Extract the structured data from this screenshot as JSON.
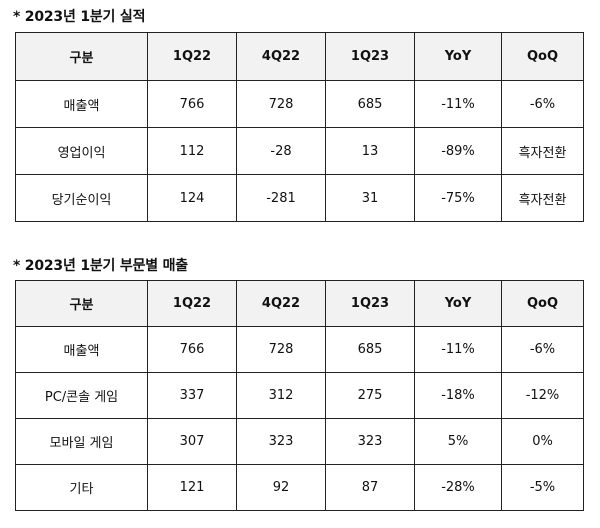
{
  "section1": {
    "title": "* 2023년 1분기 실적",
    "headers": [
      "구분",
      "1Q22",
      "4Q22",
      "1Q23",
      "YoY",
      "QoQ"
    ],
    "rows": [
      [
        "매출액",
        "766",
        "728",
        "685",
        "-11%",
        "-6%"
      ],
      [
        "영업이익",
        "112",
        "-28",
        "13",
        "-89%",
        "흑자전환"
      ],
      [
        "당기순이익",
        "124",
        "-281",
        "31",
        "-75%",
        "흑자전환"
      ]
    ]
  },
  "section2": {
    "title": "* 2023년 1분기 부문별 매출",
    "headers": [
      "구분",
      "1Q22",
      "4Q22",
      "1Q23",
      "YoY",
      "QoQ"
    ],
    "rows": [
      [
        "매출액",
        "766",
        "728",
        "685",
        "-11%",
        "-6%"
      ],
      [
        "PC/콘솔 게임",
        "337",
        "312",
        "275",
        "-18%",
        "-12%"
      ],
      [
        "모바일 게임",
        "307",
        "323",
        "323",
        "5%",
        "0%"
      ],
      [
        "기타",
        "121",
        "92",
        "87",
        "-28%",
        "-5%"
      ]
    ]
  }
}
